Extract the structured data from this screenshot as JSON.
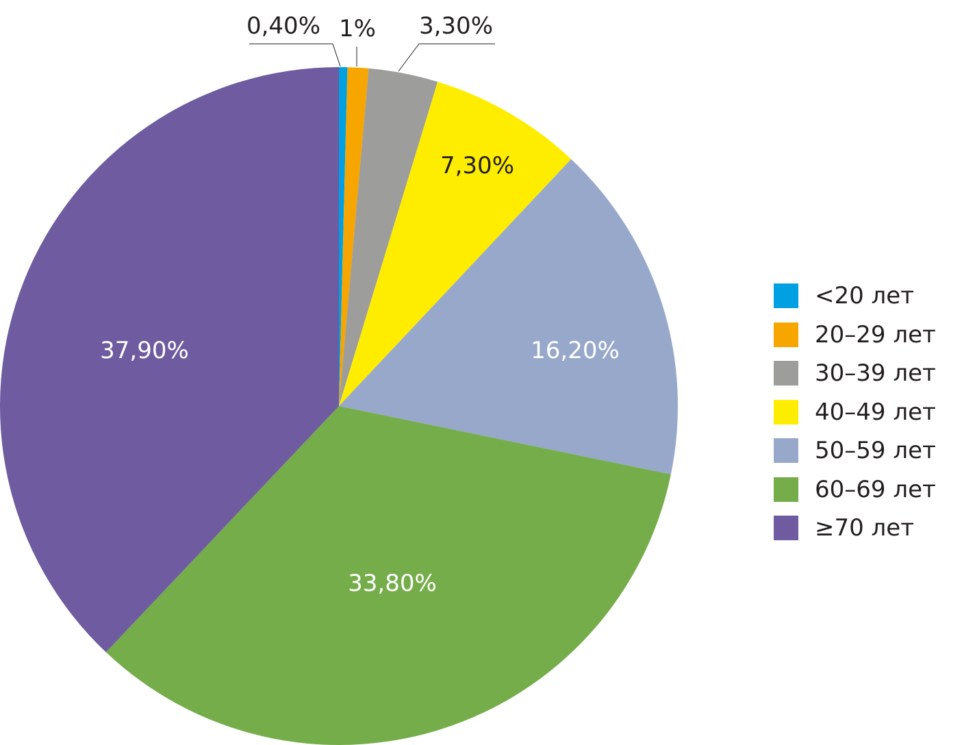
{
  "chart_data": {
    "type": "pie",
    "title": "",
    "slices": [
      {
        "label": "<20 лет",
        "value": 0.4,
        "display": "0,40%",
        "color": "#00a0e3",
        "label_style": "outside",
        "label_color": "#231f20"
      },
      {
        "label": "20–29 лет",
        "value": 1.0,
        "display": "1%",
        "color": "#f7a600",
        "label_style": "outside",
        "label_color": "#231f20"
      },
      {
        "label": "30–39 лет",
        "value": 3.3,
        "display": "3,30%",
        "color": "#9d9d9c",
        "label_style": "outside",
        "label_color": "#231f20"
      },
      {
        "label": "40–49 лет",
        "value": 7.3,
        "display": "7,30%",
        "color": "#ffed00",
        "label_style": "inside",
        "label_color": "#231f20"
      },
      {
        "label": "50–59 лет",
        "value": 16.2,
        "display": "16,20%",
        "color": "#97a8cb",
        "label_style": "inside",
        "label_color": "#ffffff"
      },
      {
        "label": "60–69 лет",
        "value": 33.8,
        "display": "33,80%",
        "color": "#76ad4b",
        "label_style": "inside",
        "label_color": "#ffffff"
      },
      {
        "label": "≥70 лет",
        "value": 37.9,
        "display": "37,90%",
        "color": "#6e5ba0",
        "label_style": "inside",
        "label_color": "#ffffff"
      }
    ],
    "start_angle": "12 o'clock",
    "direction": "clockwise",
    "legend_position": "right"
  }
}
